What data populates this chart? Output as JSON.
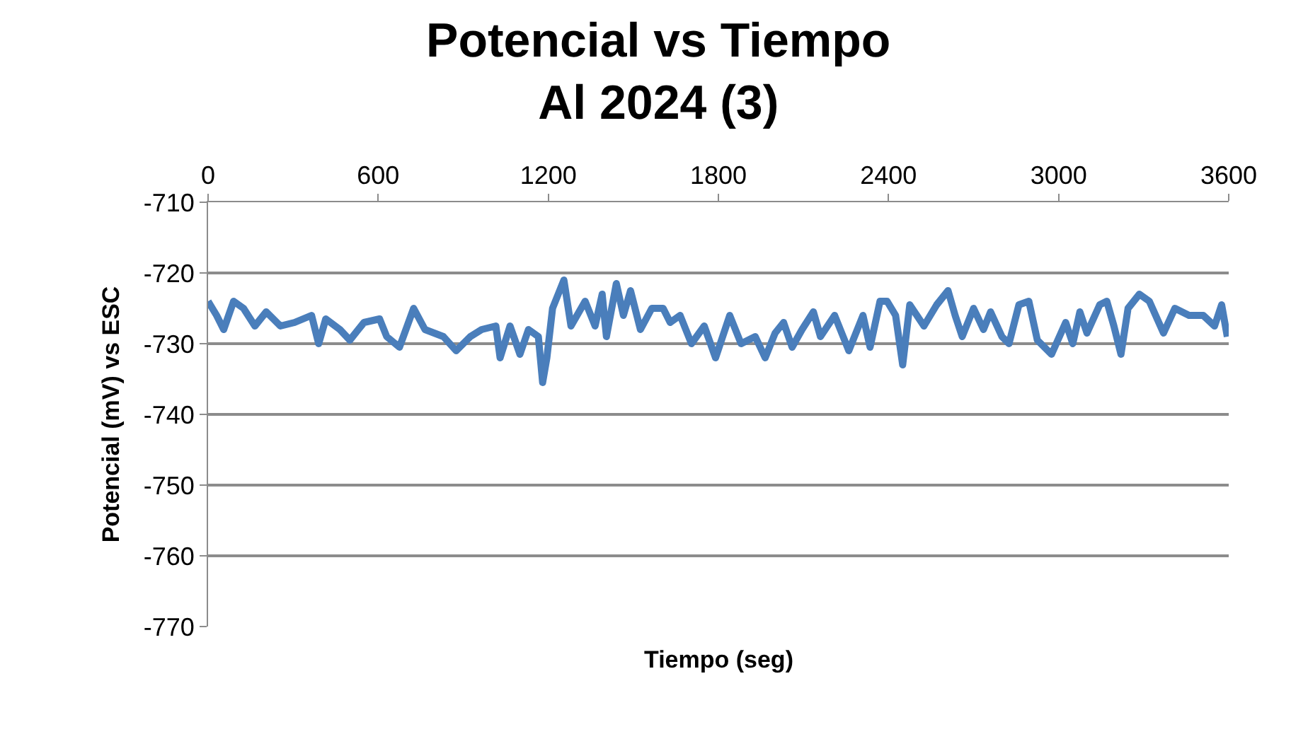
{
  "chart_data": {
    "type": "line",
    "title": "Potencial vs Tiempo\nAl 2024 (3)",
    "xlabel": "Tiempo (seg)",
    "ylabel": "Potencial (mV) vs ESC",
    "x": [
      0,
      30,
      55,
      90,
      125,
      165,
      205,
      255,
      305,
      365,
      390,
      415,
      465,
      500,
      550,
      605,
      630,
      675,
      725,
      765,
      830,
      875,
      925,
      965,
      1015,
      1030,
      1065,
      1100,
      1130,
      1165,
      1180,
      1195,
      1215,
      1255,
      1280,
      1330,
      1365,
      1390,
      1405,
      1440,
      1465,
      1490,
      1525,
      1565,
      1605,
      1630,
      1665,
      1705,
      1750,
      1790,
      1840,
      1880,
      1930,
      1965,
      2000,
      2030,
      2060,
      2095,
      2135,
      2160,
      2210,
      2260,
      2310,
      2335,
      2370,
      2395,
      2425,
      2450,
      2475,
      2525,
      2570,
      2610,
      2635,
      2660,
      2700,
      2735,
      2760,
      2800,
      2825,
      2860,
      2895,
      2925,
      2975,
      3025,
      3050,
      3075,
      3100,
      3145,
      3170,
      3195,
      3220,
      3245,
      3285,
      3320,
      3370,
      3410,
      3460,
      3510,
      3550,
      3575,
      3595
    ],
    "series": [
      {
        "color": "#4a7ebb",
        "values": [
          -724,
          -726,
          -728,
          -724,
          -725,
          -727.5,
          -725.5,
          -727.5,
          -727,
          -726,
          -730,
          -726.5,
          -728,
          -729.5,
          -727,
          -726.5,
          -729,
          -730.5,
          -725,
          -728,
          -729,
          -731,
          -729,
          -728,
          -727.5,
          -732,
          -727.5,
          -731.5,
          -728,
          -729,
          -735.5,
          -732,
          -725,
          -721,
          -727.5,
          -724,
          -727.5,
          -723,
          -729,
          -721.5,
          -726,
          -722.5,
          -728,
          -725,
          -725,
          -727,
          -726,
          -730,
          -727.5,
          -732,
          -726,
          -730,
          -729,
          -732,
          -728.5,
          -727,
          -730.5,
          -728,
          -725.5,
          -729,
          -726,
          -731,
          -726,
          -730.5,
          -724,
          -724,
          -726,
          -733,
          -724.5,
          -727.5,
          -724.5,
          -722.5,
          -726,
          -729,
          -725,
          -728,
          -725.5,
          -729,
          -730,
          -724.5,
          -724,
          -729.5,
          -731.5,
          -727,
          -730,
          -725.5,
          -728.5,
          -724.5,
          -724,
          -727.5,
          -731.5,
          -725,
          -723,
          -724,
          -728.5,
          -725,
          -726,
          -726,
          -727.5,
          -724.5,
          -729
        ]
      }
    ],
    "xlim": [
      0,
      3600
    ],
    "xticks": [
      0,
      600,
      1200,
      1800,
      2400,
      3000,
      3600
    ],
    "ylim": [
      -770,
      -710
    ],
    "yticks": [
      -770,
      -760,
      -750,
      -740,
      -730,
      -720,
      -710
    ],
    "grid": "y",
    "marker": "none",
    "line_style": "solid"
  }
}
